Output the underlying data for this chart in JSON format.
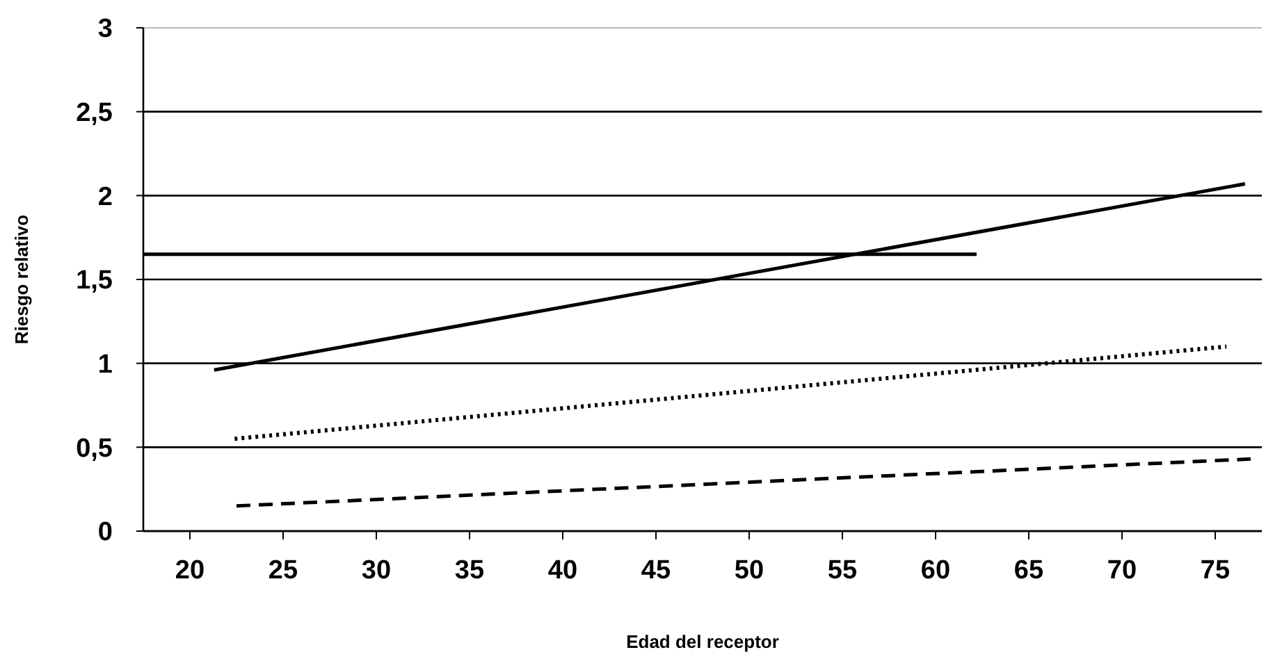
{
  "chart_data": {
    "type": "line",
    "xlabel": "Edad del receptor",
    "ylabel": "Riesgo relativo",
    "xlim": [
      17.5,
      77.5
    ],
    "xticks": [
      20,
      25,
      30,
      35,
      40,
      45,
      50,
      55,
      60,
      65,
      70,
      75
    ],
    "ylim": [
      0,
      3
    ],
    "yticks": [
      0,
      {
        "value": 0.5,
        "label": "0,5"
      },
      1,
      {
        "value": 1.5,
        "label": "1,5"
      },
      2,
      {
        "value": 2.5,
        "label": "2,5"
      },
      3
    ],
    "grid": "y",
    "marker": "none",
    "series": [
      {
        "color": "#000000",
        "line_style": "solid",
        "x": [
          21.3,
          76.6
        ],
        "values": [
          0.96,
          2.07
        ]
      },
      {
        "color": "#000000",
        "line_style": "dotted",
        "x": [
          22.4,
          75.6
        ],
        "values": [
          0.55,
          1.1
        ]
      },
      {
        "color": "#000000",
        "line_style": "dashed",
        "x": [
          22.5,
          76.9
        ],
        "values": [
          0.15,
          0.43
        ]
      },
      {
        "color": "#000000",
        "line_style": "solid",
        "x": [
          17.5,
          62.2
        ],
        "values": [
          1.65,
          1.65
        ]
      }
    ]
  }
}
